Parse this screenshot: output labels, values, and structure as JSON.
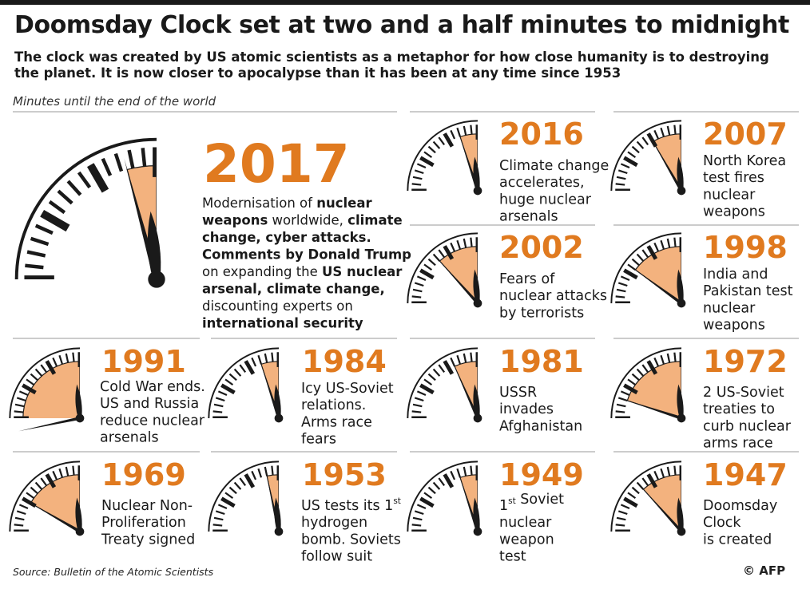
{
  "title": "Doomsday Clock  set at two and a half minutes to midnight",
  "subtitle": "The clock was created by US atomic scientists as a metaphor for how close humanity is to destroying the planet. It is now closer to apocalypse than it has been at any time since 1953",
  "caption": "Minutes until the end of the world",
  "source": "Source: Bulletin of the Atomic Scientists",
  "credit": "© AFP",
  "colors": {
    "accent": "#e07a1f",
    "wedge": "#f3b27e",
    "ink": "#1a1a1a",
    "rule": "#9a9a9a"
  },
  "chart_data": {
    "type": "clock",
    "title": "Doomsday Clock  set at two and a half minutes to midnight",
    "unit": "minutes to midnight",
    "entries": [
      {
        "year": "2017",
        "minutes_to_midnight": 2.5,
        "description": [
          [
            [
              "Modernisation of ",
              false
            ],
            [
              "nuclear",
              true
            ]
          ],
          [
            [
              "weapons",
              true
            ],
            [
              " worldwide, ",
              false
            ],
            [
              "climate",
              true
            ]
          ],
          [
            [
              "change, cyber attacks.",
              true
            ]
          ],
          [
            [
              "Comments by Donald Trump",
              true
            ]
          ],
          [
            [
              "on expanding the ",
              false
            ],
            [
              "US nuclear",
              true
            ]
          ],
          [
            [
              "arsenal, climate change,",
              true
            ]
          ],
          [
            [
              "discounting experts on",
              false
            ]
          ],
          [
            [
              "international security",
              true
            ]
          ]
        ]
      },
      {
        "year": "2016",
        "minutes_to_midnight": 3,
        "description": [
          [
            [
              "Climate change",
              false
            ]
          ],
          [
            [
              "accelerates,",
              false
            ]
          ],
          [
            [
              "huge nuclear",
              false
            ]
          ],
          [
            [
              "arsenals",
              false
            ]
          ]
        ]
      },
      {
        "year": "2007",
        "minutes_to_midnight": 5,
        "description": [
          [
            [
              "North Korea",
              false
            ]
          ],
          [
            [
              "test fires",
              false
            ]
          ],
          [
            [
              "nuclear",
              false
            ]
          ],
          [
            [
              "weapons",
              false
            ]
          ]
        ]
      },
      {
        "year": "2002",
        "minutes_to_midnight": 7,
        "description": [
          [
            [
              "Fears of",
              false
            ]
          ],
          [
            [
              "nuclear attacks",
              false
            ]
          ],
          [
            [
              "by terrorists",
              false
            ]
          ]
        ]
      },
      {
        "year": "1998",
        "minutes_to_midnight": 9,
        "description": [
          [
            [
              "India and",
              false
            ]
          ],
          [
            [
              "Pakistan test",
              false
            ]
          ],
          [
            [
              "nuclear",
              false
            ]
          ],
          [
            [
              "weapons",
              false
            ]
          ]
        ]
      },
      {
        "year": "1991",
        "minutes_to_midnight": 17,
        "description": [
          [
            [
              "Cold War ends.",
              false
            ]
          ],
          [
            [
              "US and Russia",
              false
            ]
          ],
          [
            [
              "reduce nuclear",
              false
            ]
          ],
          [
            [
              "arsenals",
              false
            ]
          ]
        ]
      },
      {
        "year": "1984",
        "minutes_to_midnight": 3,
        "description": [
          [
            [
              "Icy US-Soviet",
              false
            ]
          ],
          [
            [
              "relations.",
              false
            ]
          ],
          [
            [
              "Arms race",
              false
            ]
          ],
          [
            [
              "fears",
              false
            ]
          ]
        ]
      },
      {
        "year": "1981",
        "minutes_to_midnight": 4,
        "description": [
          [
            [
              "USSR",
              false
            ]
          ],
          [
            [
              "invades",
              false
            ]
          ],
          [
            [
              "Afghanistan",
              false
            ]
          ]
        ]
      },
      {
        "year": "1972",
        "minutes_to_midnight": 12,
        "description": [
          [
            [
              "2 US-Soviet",
              false
            ]
          ],
          [
            [
              "treaties to",
              false
            ]
          ],
          [
            [
              "curb nuclear",
              false
            ]
          ],
          [
            [
              "arms race",
              false
            ]
          ]
        ]
      },
      {
        "year": "1969",
        "minutes_to_midnight": 10,
        "description": [
          [
            [
              "Nuclear Non-",
              false
            ]
          ],
          [
            [
              "Proliferation",
              false
            ]
          ],
          [
            [
              "Treaty signed",
              false
            ]
          ]
        ]
      },
      {
        "year": "1953",
        "minutes_to_midnight": 2,
        "description": [
          [
            [
              "US tests its 1",
              false
            ],
            [
              "st",
              false,
              "sup"
            ]
          ],
          [
            [
              "hydrogen",
              false
            ]
          ],
          [
            [
              "bomb. Soviets",
              false
            ]
          ],
          [
            [
              "follow suit",
              false
            ]
          ]
        ]
      },
      {
        "year": "1949",
        "minutes_to_midnight": 3,
        "description": [
          [
            [
              "1",
              false
            ],
            [
              "st",
              false,
              "sup"
            ],
            [
              " Soviet",
              false
            ]
          ],
          [
            [
              "nuclear",
              false
            ]
          ],
          [
            [
              "weapon",
              false
            ]
          ],
          [
            [
              "test",
              false
            ]
          ]
        ]
      },
      {
        "year": "1947",
        "minutes_to_midnight": 7,
        "description": [
          [
            [
              "Doomsday",
              false
            ]
          ],
          [
            [
              "Clock",
              false
            ]
          ],
          [
            [
              "is created",
              false
            ]
          ]
        ]
      }
    ]
  }
}
